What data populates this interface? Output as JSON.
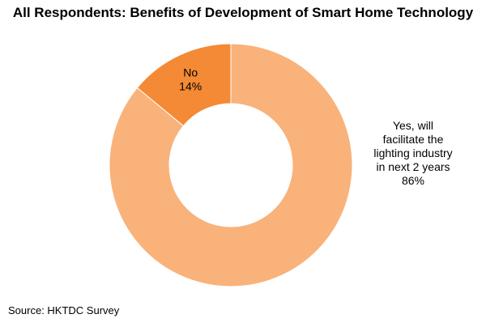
{
  "chart_data": {
    "type": "pie",
    "variant": "donut",
    "title": "All Respondents: Benefits of Development of Smart Home Technology",
    "slices": [
      {
        "label_lines": [
          "Yes, will",
          "facilitate the",
          "lighting industry",
          "in next 2 years"
        ],
        "value": 86,
        "value_label": "86%",
        "color": "#f9b27a"
      },
      {
        "label_lines": [
          "No"
        ],
        "value": 14,
        "value_label": "14%",
        "color": "#f48a35"
      }
    ],
    "legend": "none",
    "grid": false
  },
  "source": "Source: HKTDC Survey"
}
